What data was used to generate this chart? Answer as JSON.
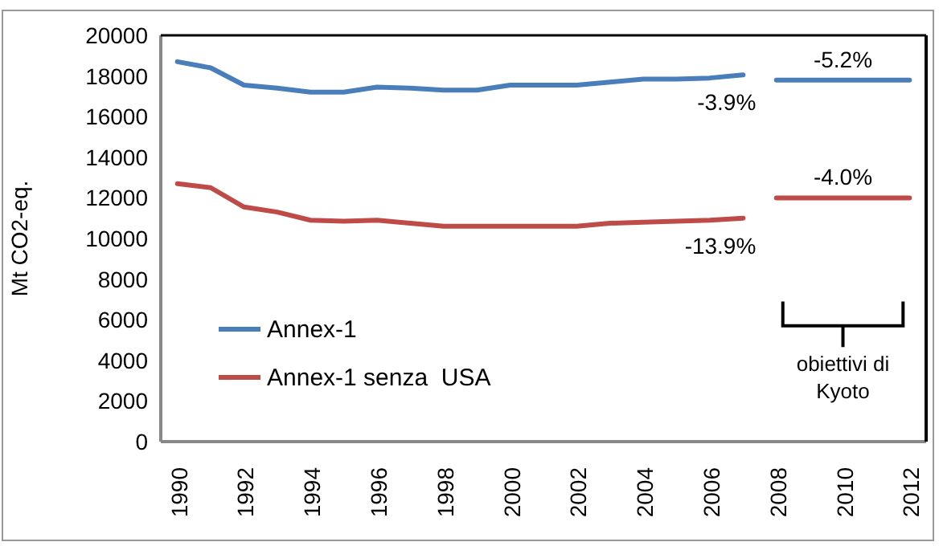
{
  "chart_data": {
    "type": "line",
    "ylabel": "Mt CO2-eq.",
    "xlim": [
      1989.5,
      2012.5
    ],
    "xticks": [
      1990,
      1992,
      1994,
      1996,
      1998,
      2000,
      2002,
      2004,
      2006,
      2008,
      2010,
      2012
    ],
    "ylim": [
      0,
      20000
    ],
    "yticks": [
      0,
      2000,
      4000,
      6000,
      8000,
      10000,
      12000,
      14000,
      16000,
      18000,
      20000
    ],
    "grid": false,
    "legend": "left",
    "series": [
      {
        "name": "Annex-1",
        "color": "#4a7ebb",
        "x": [
          1990,
          1991,
          1992,
          1993,
          1994,
          1995,
          1996,
          1997,
          1998,
          1999,
          2000,
          2001,
          2002,
          2003,
          2004,
          2005,
          2006,
          2007
        ],
        "values": [
          18700,
          18400,
          17550,
          17400,
          17200,
          17200,
          17450,
          17400,
          17300,
          17300,
          17550,
          17550,
          17550,
          17700,
          17850,
          17850,
          17900,
          18050
        ]
      },
      {
        "name": "Annex-1 senza  USA",
        "color": "#be4b48",
        "x": [
          1990,
          1991,
          1992,
          1993,
          1994,
          1995,
          1996,
          1997,
          1998,
          1999,
          2000,
          2001,
          2002,
          2003,
          2004,
          2005,
          2006,
          2007
        ],
        "values": [
          12700,
          12500,
          11550,
          11300,
          10900,
          10850,
          10900,
          10750,
          10600,
          10600,
          10600,
          10600,
          10600,
          10750,
          10800,
          10850,
          10900,
          11000
        ]
      },
      {
        "color": "#4a7ebb",
        "x": [
          2008,
          2012
        ],
        "values": [
          17800,
          17800
        ]
      },
      {
        "color": "#be4b48",
        "x": [
          2008,
          2012
        ],
        "values": [
          12000,
          12000
        ]
      }
    ],
    "annotations": [
      "-3.9%",
      "-13.9%",
      "-5.2%",
      "-4.0%",
      "obiettivi di Kyoto"
    ]
  }
}
